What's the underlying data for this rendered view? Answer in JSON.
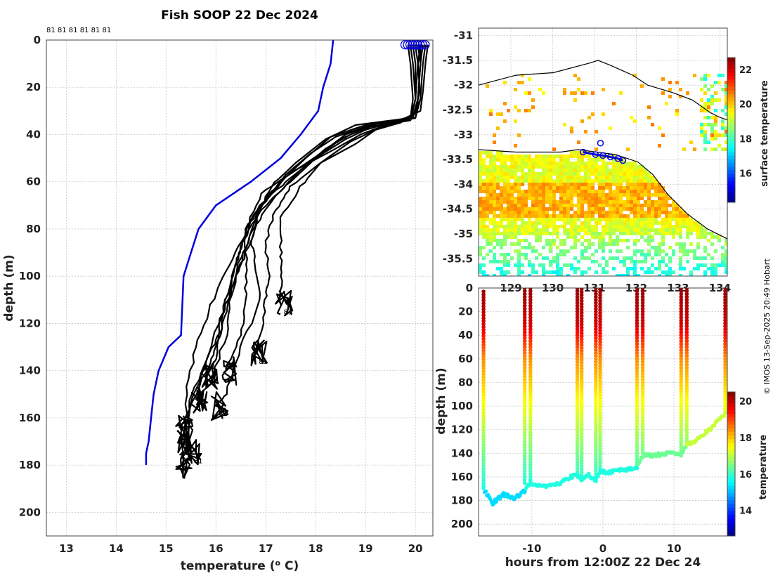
{
  "chart_data": [
    {
      "type": "line",
      "title": "Fish SOOP 22 Dec 2024",
      "xlabel": "temperature (",
      "xlabel_sup": "o",
      "xlabel_suffix": " C)",
      "ylabel": "depth (m)",
      "xlim": [
        12.6,
        20.35
      ],
      "ylim": [
        210,
        0
      ],
      "xticks": [
        13,
        14,
        15,
        16,
        17,
        18,
        19,
        20
      ],
      "yticks": [
        0,
        20,
        40,
        60,
        80,
        100,
        120,
        140,
        160,
        180,
        200
      ],
      "top_labels": "81 81 81 81 81 81",
      "profile_labels": [
        "81",
        "81",
        "81",
        "81",
        "81"
      ],
      "climatology_color": "#0000dd",
      "climatology": {
        "temp": [
          18.35,
          18.3,
          18.15,
          18.05,
          17.7,
          17.3,
          16.7,
          16.0,
          15.65,
          15.5,
          15.35,
          15.3,
          15.05,
          14.85,
          14.75,
          14.7,
          14.65,
          14.6,
          14.6
        ],
        "depth": [
          0,
          10,
          20,
          30,
          40,
          50,
          60,
          70,
          80,
          90,
          100,
          125,
          130,
          140,
          150,
          160,
          170,
          175,
          180
        ]
      },
      "profile_color": "#000000",
      "profiles": [
        {
          "temp": [
            20.1,
            20.1,
            20.05,
            20.0,
            19.4,
            18.9,
            18.4,
            17.6,
            16.9,
            16.6,
            16.4,
            16.2,
            16.1,
            15.9,
            15.5,
            15.4,
            15.3
          ],
          "depth": [
            2,
            10,
            25,
            33,
            36,
            40,
            46,
            55,
            65,
            80,
            95,
            110,
            122,
            132,
            150,
            165,
            180
          ]
        },
        {
          "temp": [
            20.2,
            20.15,
            20.1,
            20.0,
            19.2,
            18.6,
            18.1,
            17.4,
            16.9,
            16.7,
            16.4,
            16.1,
            15.8,
            15.5,
            15.3
          ],
          "depth": [
            2,
            10,
            25,
            33,
            35,
            40,
            48,
            58,
            70,
            85,
            100,
            118,
            135,
            155,
            170
          ]
        },
        {
          "temp": [
            19.9,
            19.95,
            20.0,
            19.9,
            19.0,
            18.3,
            17.8,
            17.3,
            16.8,
            16.5,
            16.3,
            16.1,
            16.0,
            15.8
          ],
          "depth": [
            2,
            10,
            25,
            34,
            36,
            41,
            50,
            60,
            72,
            88,
            102,
            118,
            135,
            142
          ]
        },
        {
          "temp": [
            20.0,
            20.05,
            20.1,
            19.95,
            19.5,
            19.0,
            18.6,
            18.0,
            17.4,
            16.9,
            16.7,
            16.8,
            16.9,
            16.5,
            16.2,
            16.0
          ],
          "depth": [
            2,
            10,
            25,
            32,
            35,
            38,
            42,
            50,
            60,
            70,
            85,
            95,
            110,
            130,
            150,
            155
          ]
        },
        {
          "temp": [
            20.25,
            20.2,
            20.15,
            20.1,
            19.6,
            19.2,
            18.8,
            18.1,
            17.5,
            17.2,
            17.0,
            17.05,
            17.0,
            16.9,
            16.8
          ],
          "depth": [
            2,
            10,
            22,
            30,
            35,
            38,
            44,
            52,
            62,
            72,
            85,
            100,
            110,
            125,
            133
          ]
        },
        {
          "temp": [
            20.1,
            20.05,
            20.0,
            19.9,
            18.8,
            18.2,
            17.6,
            17.1,
            16.8,
            16.6,
            16.4,
            16.2,
            16.0,
            15.8,
            15.4,
            15.3
          ],
          "depth": [
            2,
            10,
            25,
            33,
            36,
            42,
            52,
            62,
            75,
            88,
            100,
            115,
            130,
            140,
            160,
            165
          ]
        },
        {
          "temp": [
            19.85,
            19.9,
            19.95,
            19.9,
            19.1,
            18.4,
            17.9,
            17.4,
            17.0,
            16.6,
            16.6,
            16.6,
            16.5,
            16.2
          ],
          "depth": [
            2,
            10,
            25,
            33,
            36,
            41,
            48,
            57,
            68,
            80,
            95,
            110,
            125,
            140
          ]
        },
        {
          "temp": [
            20.05,
            20.1,
            20.05,
            19.95,
            19.3,
            18.7,
            18.2,
            17.7,
            17.2,
            16.8,
            16.5,
            16.3,
            16.2,
            15.9,
            15.6
          ],
          "depth": [
            2,
            10,
            25,
            33,
            35,
            40,
            46,
            55,
            66,
            78,
            92,
            108,
            125,
            145,
            152
          ]
        },
        {
          "temp": [
            20.15,
            20.1,
            20.05,
            19.95,
            19.7,
            19.2,
            18.7,
            18.1,
            17.7,
            17.3,
            17.3,
            17.3,
            17.3
          ],
          "depth": [
            2,
            10,
            25,
            32,
            35,
            38,
            43,
            52,
            62,
            75,
            90,
            100,
            112
          ]
        },
        {
          "temp": [
            19.95,
            20.0,
            20.0,
            19.9,
            19.0,
            18.5,
            18.0,
            17.5,
            17.0,
            16.6,
            16.2,
            15.9,
            15.6,
            15.4,
            15.5
          ],
          "depth": [
            2,
            10,
            25,
            34,
            37,
            42,
            50,
            60,
            70,
            82,
            98,
            112,
            130,
            150,
            175
          ]
        }
      ]
    },
    {
      "type": "heatmap",
      "yticks": [
        "-31",
        "-31.5",
        "-32",
        "-32.5",
        "-33",
        "-33.5",
        "-34",
        "-34.5",
        "-35",
        "-35.5"
      ],
      "ytick_values": [
        -31,
        -31.5,
        -32,
        -32.5,
        -33,
        -33.5,
        -34,
        -34.5,
        -35,
        -35.5
      ],
      "ylim": [
        -35.85,
        -30.85
      ],
      "xticks": [
        "129",
        "130",
        "131",
        "132",
        "133",
        "134"
      ],
      "colorbar_label": "surface temperature",
      "colorbar_ticks": [
        "16",
        "18",
        "20",
        "22"
      ],
      "colorbar_tick_values": [
        16,
        18,
        20,
        22
      ],
      "clim": [
        14.3,
        22.7
      ],
      "track": {
        "xf": [
          0.42,
          0.47,
          0.5,
          0.53,
          0.56,
          0.58
        ],
        "lat": [
          -33.35,
          -33.4,
          -33.42,
          -33.45,
          -33.48,
          -33.52
        ]
      }
    },
    {
      "type": "scatter",
      "title": "",
      "xlabel": "hours from 12:00Z 22 Dec 24",
      "ylabel": "depth (m)",
      "xlim": [
        -17.5,
        17.5
      ],
      "ylim": [
        210,
        0
      ],
      "xticks": [
        -10,
        0,
        10
      ],
      "xtick_labels": [
        "-10",
        "0",
        "10"
      ],
      "yticks": [
        0,
        20,
        40,
        60,
        80,
        100,
        120,
        140,
        160,
        180,
        200
      ],
      "colorbar_label": "temperature",
      "colorbar_ticks": [
        "14",
        "16",
        "18",
        "20"
      ],
      "colorbar_tick_values": [
        14,
        16,
        18,
        20
      ],
      "clim": [
        12.6,
        20.5
      ],
      "casts": [
        {
          "x": -16.8,
          "bottom": 170,
          "start": 3
        },
        {
          "x": -11.0,
          "bottom": 165,
          "start": 0
        },
        {
          "x": -10.2,
          "bottom": 163,
          "start": 0
        },
        {
          "x": -3.6,
          "bottom": 160,
          "start": 0
        },
        {
          "x": -3.0,
          "bottom": 162,
          "start": 1
        },
        {
          "x": -1.0,
          "bottom": 163,
          "start": 0
        },
        {
          "x": -0.4,
          "bottom": 155,
          "start": 1
        },
        {
          "x": 4.8,
          "bottom": 152,
          "start": 0
        },
        {
          "x": 5.6,
          "bottom": 140,
          "start": 0
        },
        {
          "x": 11.0,
          "bottom": 141,
          "start": 0
        },
        {
          "x": 11.8,
          "bottom": 132,
          "start": 0
        },
        {
          "x": 17.2,
          "bottom": 107,
          "start": 0
        }
      ],
      "bottom_trace": {
        "x": [
          -16.8,
          -15.5,
          -14.0,
          -12.5,
          -11.0,
          -10.2,
          -8.0,
          -6.0,
          -4.5,
          -3.6,
          -3.0,
          -2.0,
          -1.0,
          -0.4,
          1.0,
          3.0,
          4.8,
          5.6,
          7.0,
          9.0,
          11.0,
          11.8,
          13.0,
          15.0,
          17.2
        ],
        "depth": [
          170,
          182,
          175,
          178,
          172,
          165,
          168,
          165,
          160,
          158,
          162,
          158,
          163,
          155,
          156,
          154,
          152,
          142,
          142,
          140,
          141,
          132,
          130,
          120,
          107
        ]
      }
    }
  ],
  "watermark": "© IMOS 13-Sep-2025 20:49 Hobart"
}
